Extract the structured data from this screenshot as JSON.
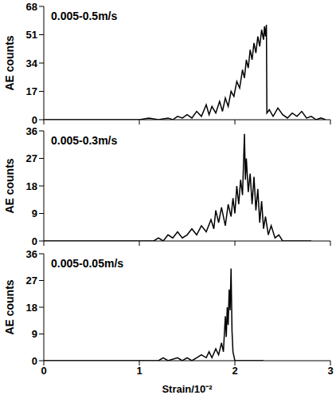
{
  "chart_data": [
    {
      "type": "line",
      "annotations": [
        "0.005-0.5m/s"
      ],
      "ylabel": "AE counts",
      "color": "#000000",
      "x": [
        0,
        1.0,
        1.1,
        1.2,
        1.3,
        1.35,
        1.4,
        1.45,
        1.5,
        1.55,
        1.6,
        1.65,
        1.7,
        1.73,
        1.76,
        1.8,
        1.84,
        1.87,
        1.9,
        1.93,
        1.96,
        1.99,
        2.02,
        2.05,
        2.08,
        2.1,
        2.12,
        2.14,
        2.16,
        2.18,
        2.2,
        2.22,
        2.24,
        2.26,
        2.28,
        2.3,
        2.31,
        2.32,
        2.33,
        2.335,
        2.36,
        2.4,
        2.45,
        2.5,
        2.55,
        2.6,
        2.65,
        2.7,
        2.75,
        2.8,
        2.85,
        2.9,
        2.95
      ],
      "values": [
        0,
        0,
        1,
        0,
        1,
        0,
        2,
        1,
        3,
        1,
        5,
        2,
        9,
        3,
        8,
        4,
        11,
        5,
        13,
        8,
        17,
        14,
        23,
        19,
        30,
        25,
        36,
        31,
        42,
        36,
        46,
        40,
        50,
        44,
        54,
        48,
        56,
        50,
        57,
        4,
        6,
        2,
        7,
        3,
        1,
        4,
        2,
        5,
        1,
        2,
        0,
        1,
        0
      ],
      "xlim": [
        0,
        3
      ],
      "xticks": [
        0,
        1,
        2,
        3
      ],
      "ylim": [
        0,
        68
      ],
      "yticks": [
        0,
        17,
        34,
        51,
        68
      ],
      "tick_labels": "y"
    },
    {
      "type": "line",
      "annotations": [
        "0.005-0.3m/s"
      ],
      "ylabel": "AE counts",
      "color": "#000000",
      "x": [
        0,
        1.15,
        1.2,
        1.25,
        1.3,
        1.35,
        1.4,
        1.45,
        1.5,
        1.55,
        1.6,
        1.65,
        1.7,
        1.75,
        1.78,
        1.8,
        1.83,
        1.86,
        1.9,
        1.93,
        1.96,
        1.98,
        2.0,
        2.02,
        2.04,
        2.06,
        2.08,
        2.1,
        2.11,
        2.12,
        2.14,
        2.16,
        2.18,
        2.2,
        2.22,
        2.24,
        2.26,
        2.28,
        2.3,
        2.32,
        2.35,
        2.38,
        2.42,
        2.46,
        2.5,
        2.6,
        2.8
      ],
      "values": [
        0,
        0,
        1,
        0,
        2,
        1,
        3,
        1,
        2,
        4,
        2,
        5,
        3,
        7,
        4,
        10,
        6,
        11,
        5,
        12,
        8,
        14,
        9,
        18,
        12,
        20,
        15,
        35,
        20,
        27,
        16,
        22,
        12,
        21,
        10,
        17,
        6,
        13,
        4,
        8,
        2,
        5,
        1,
        2,
        0,
        0,
        0
      ],
      "xlim": [
        0,
        3
      ],
      "xticks": [
        0,
        1,
        2,
        3
      ],
      "ylim": [
        0,
        36
      ],
      "yticks": [
        0,
        9,
        18,
        27,
        36
      ],
      "tick_labels": "y"
    },
    {
      "type": "line",
      "annotations": [
        "0.005-0.05m/s"
      ],
      "ylabel": "AE counts",
      "xlabel": "Strain/10⁻²",
      "color": "#000000",
      "x": [
        0,
        1.2,
        1.25,
        1.3,
        1.4,
        1.45,
        1.5,
        1.55,
        1.6,
        1.65,
        1.7,
        1.73,
        1.76,
        1.8,
        1.83,
        1.86,
        1.88,
        1.9,
        1.91,
        1.92,
        1.93,
        1.94,
        1.95,
        1.96,
        1.97,
        1.98,
        2.0,
        2.1,
        2.3
      ],
      "values": [
        0,
        0,
        1,
        0,
        1,
        0,
        1,
        0,
        1,
        2,
        1,
        3,
        1,
        4,
        2,
        6,
        3,
        15,
        8,
        18,
        12,
        24,
        17,
        31,
        10,
        3,
        0,
        0,
        0
      ],
      "xlim": [
        0,
        3
      ],
      "xticks": [
        0,
        1,
        2,
        3
      ],
      "ylim": [
        0,
        36
      ],
      "yticks": [
        0,
        9,
        18,
        27,
        36
      ]
    }
  ]
}
